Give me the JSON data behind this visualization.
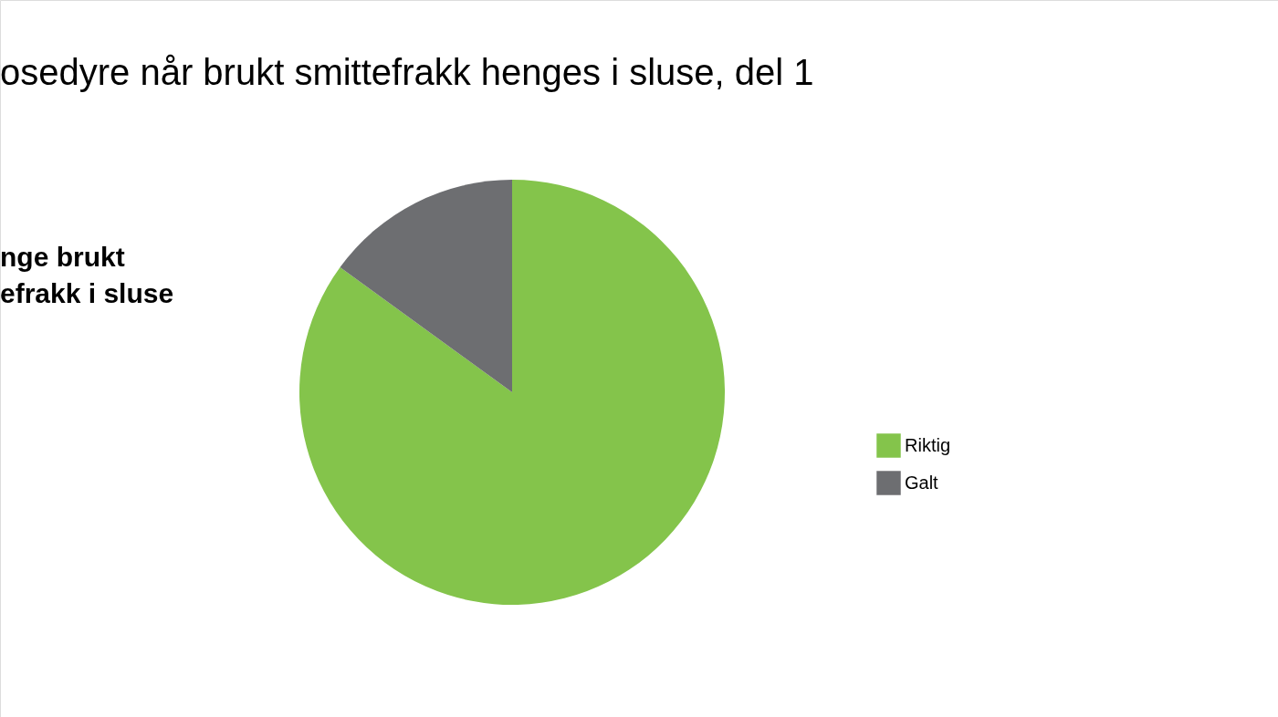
{
  "chart_data": {
    "type": "pie",
    "title": "osedyre når brukt smittefrakk henges i sluse, del 1",
    "annotations": [
      "nge brukt\nefrakk i sluse"
    ],
    "categories": [
      "Riktig",
      "Galt"
    ],
    "values": [
      85,
      15
    ],
    "colors": [
      "#84c44b",
      "#6d6e71"
    ],
    "legend": "right"
  }
}
